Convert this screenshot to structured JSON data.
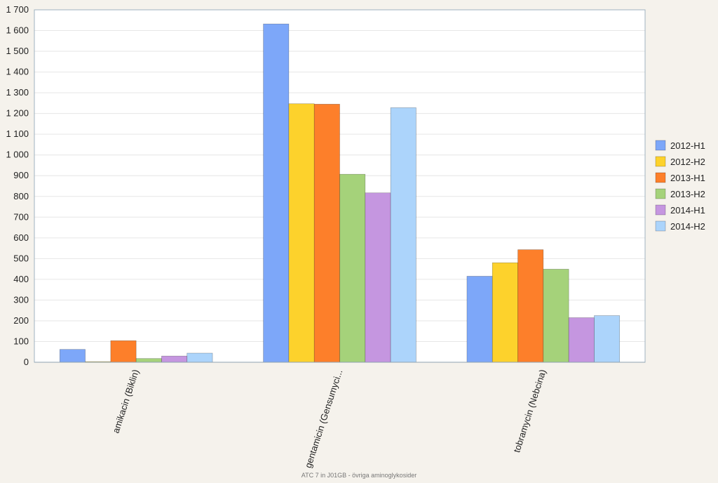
{
  "chart_data": {
    "type": "bar",
    "categories": [
      "amikacin (Biklin)",
      "gentamicin (Gensumyci...",
      "tobramycin (Nebcina)"
    ],
    "series": [
      {
        "name": "2012-H1",
        "color": "#7da7f9",
        "values": [
          62,
          1632,
          415
        ]
      },
      {
        "name": "2012-H2",
        "color": "#fdd22c",
        "values": [
          3,
          1247,
          480
        ]
      },
      {
        "name": "2013-H1",
        "color": "#fd7f2a",
        "values": [
          104,
          1245,
          543
        ]
      },
      {
        "name": "2013-H2",
        "color": "#a5d27a",
        "values": [
          18,
          907,
          449
        ]
      },
      {
        "name": "2014-H1",
        "color": "#c596e0",
        "values": [
          30,
          817,
          215
        ]
      },
      {
        "name": "2014-H2",
        "color": "#acd4fb",
        "values": [
          44,
          1228,
          225
        ]
      }
    ],
    "ylim": [
      0,
      1700
    ],
    "yticks": [
      "0",
      "100",
      "200",
      "300",
      "400",
      "500",
      "600",
      "700",
      "800",
      "900",
      "1 000",
      "1 100",
      "1 200",
      "1 300",
      "1 400",
      "1 500",
      "1 600",
      "1 700"
    ],
    "title": "",
    "xlabel": "",
    "ylabel": "",
    "grid": true,
    "legend_position": "right"
  },
  "footer": "ATC 7 in  J01GB - övriga aminoglykosider"
}
